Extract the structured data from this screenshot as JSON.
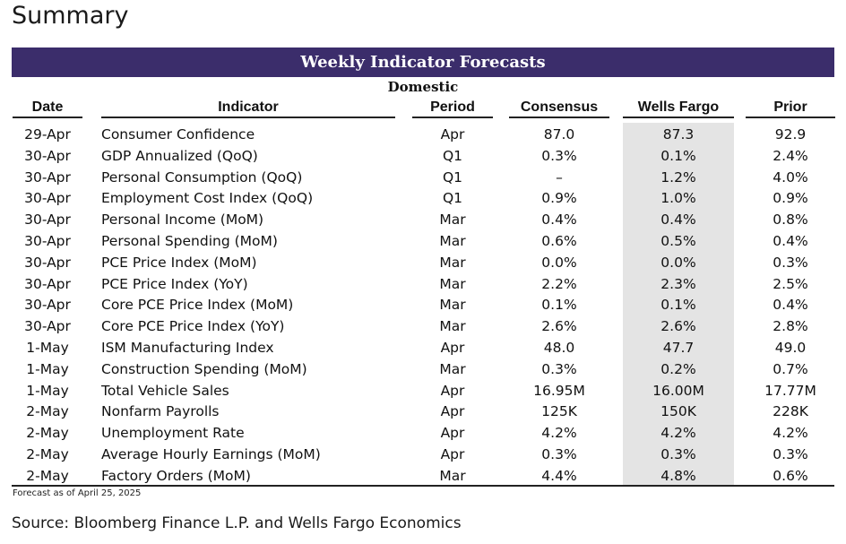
{
  "page": {
    "title": "Summary",
    "banner": "Weekly Indicator Forecasts",
    "section": "Domestic",
    "note": "Forecast as of April 25, 2025",
    "source": "Source: Bloomberg Finance L.P. and Wells Fargo Economics"
  },
  "table": {
    "headers": {
      "date": "Date",
      "indicator": "Indicator",
      "period": "Period",
      "consensus": "Consensus",
      "wells_fargo": "Wells Fargo",
      "prior": "Prior"
    },
    "highlight_color": "#e4e4e4",
    "banner_color": "#3b2d6b",
    "rows": [
      {
        "date": "29-Apr",
        "indicator": "Consumer Confidence",
        "period": "Apr",
        "consensus": "87.0",
        "wells_fargo": "87.3",
        "prior": "92.9"
      },
      {
        "date": "30-Apr",
        "indicator": "GDP Annualized (QoQ)",
        "period": "Q1",
        "consensus": "0.3%",
        "wells_fargo": "0.1%",
        "prior": "2.4%"
      },
      {
        "date": "30-Apr",
        "indicator": "Personal Consumption (QoQ)",
        "period": "Q1",
        "consensus": "–",
        "wells_fargo": "1.2%",
        "prior": "4.0%"
      },
      {
        "date": "30-Apr",
        "indicator": "Employment Cost Index (QoQ)",
        "period": "Q1",
        "consensus": "0.9%",
        "wells_fargo": "1.0%",
        "prior": "0.9%"
      },
      {
        "date": "30-Apr",
        "indicator": "Personal Income (MoM)",
        "period": "Mar",
        "consensus": "0.4%",
        "wells_fargo": "0.4%",
        "prior": "0.8%"
      },
      {
        "date": "30-Apr",
        "indicator": "Personal Spending (MoM)",
        "period": "Mar",
        "consensus": "0.6%",
        "wells_fargo": "0.5%",
        "prior": "0.4%"
      },
      {
        "date": "30-Apr",
        "indicator": "PCE Price Index (MoM)",
        "period": "Mar",
        "consensus": "0.0%",
        "wells_fargo": "0.0%",
        "prior": "0.3%"
      },
      {
        "date": "30-Apr",
        "indicator": "PCE Price Index (YoY)",
        "period": "Mar",
        "consensus": "2.2%",
        "wells_fargo": "2.3%",
        "prior": "2.5%"
      },
      {
        "date": "30-Apr",
        "indicator": "Core PCE Price Index (MoM)",
        "period": "Mar",
        "consensus": "0.1%",
        "wells_fargo": "0.1%",
        "prior": "0.4%"
      },
      {
        "date": "30-Apr",
        "indicator": "Core PCE Price Index (YoY)",
        "period": "Mar",
        "consensus": "2.6%",
        "wells_fargo": "2.6%",
        "prior": "2.8%"
      },
      {
        "date": "1-May",
        "indicator": "ISM Manufacturing Index",
        "period": "Apr",
        "consensus": "48.0",
        "wells_fargo": "47.7",
        "prior": "49.0"
      },
      {
        "date": "1-May",
        "indicator": "Construction Spending (MoM)",
        "period": "Mar",
        "consensus": "0.3%",
        "wells_fargo": "0.2%",
        "prior": "0.7%"
      },
      {
        "date": "1-May",
        "indicator": "Total Vehicle Sales",
        "period": "Apr",
        "consensus": "16.95M",
        "wells_fargo": "16.00M",
        "prior": "17.77M"
      },
      {
        "date": "2-May",
        "indicator": "Nonfarm Payrolls",
        "period": "Apr",
        "consensus": "125K",
        "wells_fargo": "150K",
        "prior": "228K"
      },
      {
        "date": "2-May",
        "indicator": "Unemployment Rate",
        "period": "Apr",
        "consensus": "4.2%",
        "wells_fargo": "4.2%",
        "prior": "4.2%"
      },
      {
        "date": "2-May",
        "indicator": "Average Hourly Earnings (MoM)",
        "period": "Apr",
        "consensus": "0.3%",
        "wells_fargo": "0.3%",
        "prior": "0.3%"
      },
      {
        "date": "2-May",
        "indicator": "Factory Orders (MoM)",
        "period": "Mar",
        "consensus": "4.4%",
        "wells_fargo": "4.8%",
        "prior": "0.6%"
      }
    ]
  }
}
